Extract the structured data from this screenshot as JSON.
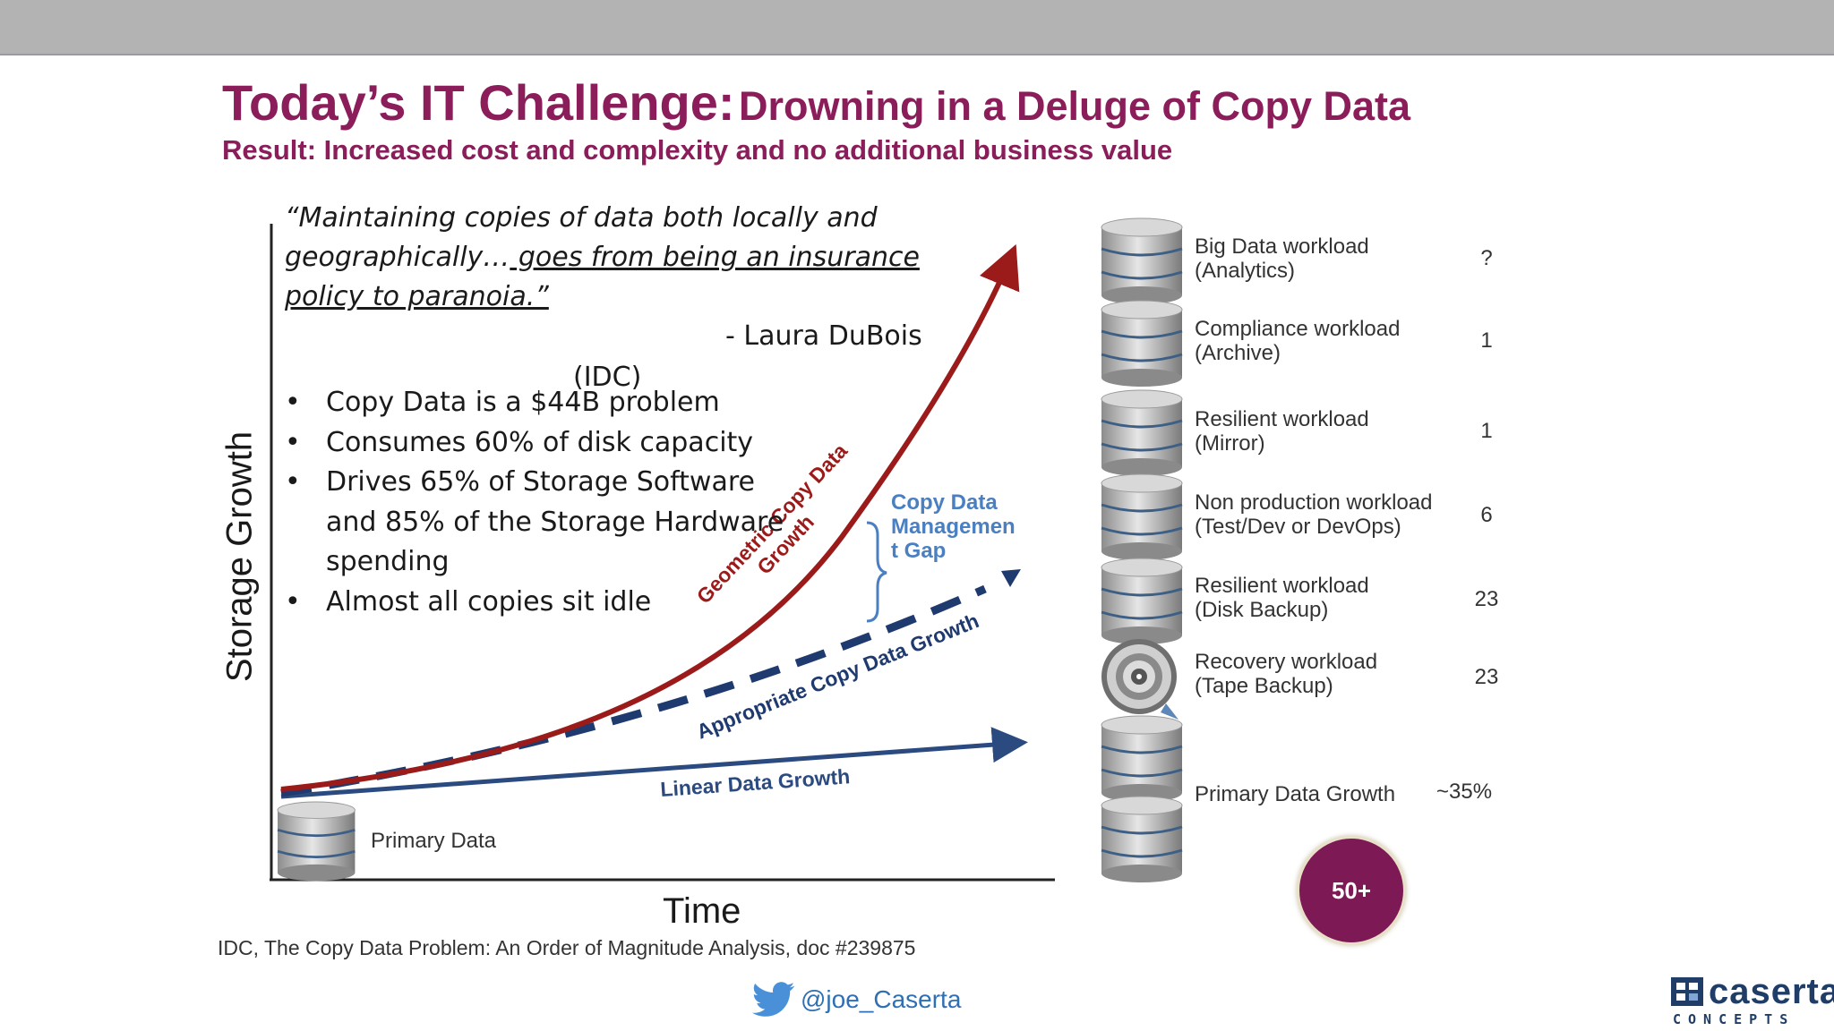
{
  "header": {
    "title_main": "Today’s IT Challenge:",
    "title_sub": "Drowning in a Deluge of Copy Data",
    "subtitle": "Result: Increased cost and complexity and no additional business value"
  },
  "quote": {
    "line1": "“Maintaining copies of data both locally and",
    "line2_plain": "geographically…",
    "line2_underlined": " goes from being an insurance",
    "line3_underlined": "policy to paranoia.”",
    "attribution": "- Laura DuBois",
    "source": "(IDC)"
  },
  "bullets": [
    "Copy Data is a $44B problem",
    "Consumes 60% of disk capacity",
    "Drives 65% of Storage Software and 85% of the Storage Hardware spending",
    "Almost all copies sit idle"
  ],
  "diagram": {
    "y_axis_label": "Storage Growth",
    "x_axis_label": "Time",
    "geometric_label_line1": "Geometric Copy Data",
    "geometric_label_line2": "Growth",
    "appropriate_label": "Appropriate Copy Data Growth",
    "linear_label": "Linear Data Growth",
    "gap_label": "Copy Data Managemen t Gap",
    "primary_data_label": "Primary Data",
    "colors": {
      "geometric": "#9b1b1b",
      "appropriate": "#1f3a6e",
      "linear": "#2a4a80",
      "gap": "#4a7fc1"
    }
  },
  "workloads": [
    {
      "name_line1": "Big Data workload",
      "name_line2": "(Analytics)",
      "count": "?",
      "icon": "database-icon"
    },
    {
      "name_line1": "Compliance workload",
      "name_line2": "(Archive)",
      "count": "1",
      "icon": "database-icon"
    },
    {
      "name_line1": "Resilient workload",
      "name_line2": "(Mirror)",
      "count": "1",
      "icon": "database-icon"
    },
    {
      "name_line1": "Non production workload",
      "name_line2": "(Test/Dev or DevOps)",
      "count": "6",
      "icon": "database-icon"
    },
    {
      "name_line1": "Resilient workload",
      "name_line2": "(Disk Backup)",
      "count": "23",
      "icon": "database-icon"
    },
    {
      "name_line1": "Recovery workload",
      "name_line2": "(Tape Backup)",
      "count": "23",
      "icon": "tape-reel-icon"
    }
  ],
  "primary_growth": {
    "label": "Primary Data Growth",
    "value": "~35%"
  },
  "total_badge": "50+",
  "footnote": "IDC, The Copy Data Problem: An Order of Magnitude Analysis, doc #239875",
  "footer": {
    "twitter_handle": "@joe_Caserta",
    "logo_word": "caserta",
    "logo_tagline": "CONCEPTS"
  }
}
